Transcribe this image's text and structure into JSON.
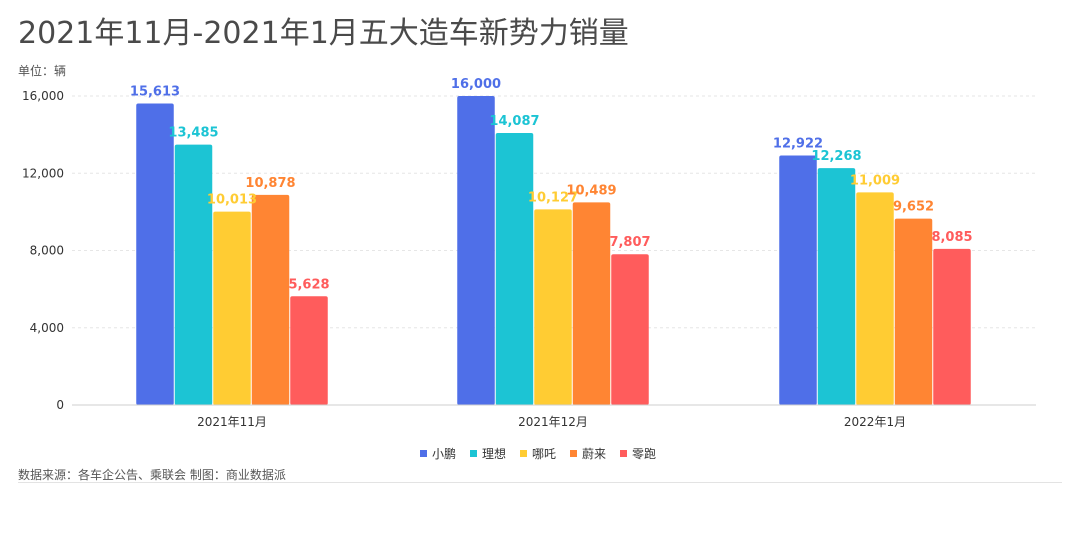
{
  "chart_data": {
    "type": "bar",
    "title": "2021年11月-2021年1月五大造车新势力销量",
    "unit_label": "单位：辆",
    "categories": [
      "2021年11月",
      "2021年12月",
      "2022年1月"
    ],
    "series": [
      {
        "name": "小鹏",
        "color": "#4f6fe8",
        "values": [
          15613,
          16000,
          12922
        ],
        "labels": [
          "15,613",
          "16,000",
          "12,922"
        ]
      },
      {
        "name": "理想",
        "color": "#1cc4d4",
        "values": [
          13485,
          14087,
          12268
        ],
        "labels": [
          "13,485",
          "14,087",
          "12,268"
        ]
      },
      {
        "name": "哪吒",
        "color": "#ffcc33",
        "values": [
          10013,
          10127,
          11009
        ],
        "labels": [
          "10,013",
          "10,127",
          "11,009"
        ]
      },
      {
        "name": "蔚来",
        "color": "#ff8533",
        "values": [
          10878,
          10489,
          9652
        ],
        "labels": [
          "10,878",
          "10,489",
          "9,652"
        ]
      },
      {
        "name": "零跑",
        "color": "#ff5c5c",
        "values": [
          5628,
          7807,
          8085
        ],
        "labels": [
          "5,628",
          "7,807",
          "8,085"
        ]
      }
    ],
    "y_ticks": [
      0,
      4000,
      8000,
      12000,
      16000
    ],
    "y_tick_labels": [
      "0",
      "4,000",
      "8,000",
      "12,000",
      "16,000"
    ],
    "ylim": [
      0,
      16000
    ],
    "grid": true,
    "legend_position": "bottom-center",
    "xlabel": "",
    "ylabel": ""
  },
  "source_text": "数据来源：各车企公告、乘联会  制图：商业数据派",
  "watermark_text": "商业数据派"
}
